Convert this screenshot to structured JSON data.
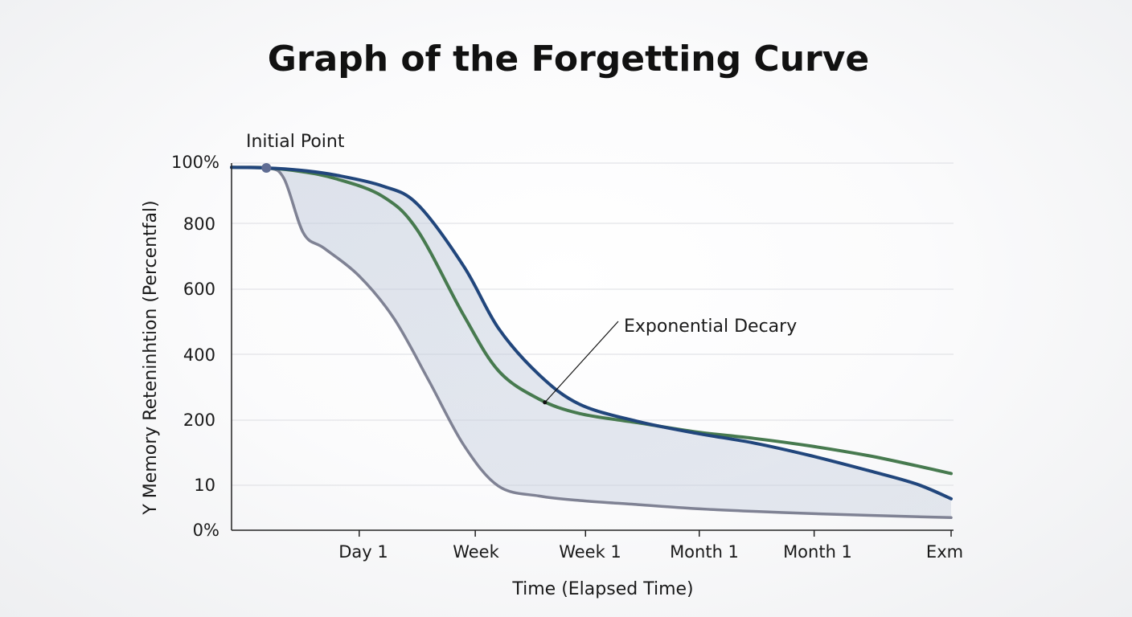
{
  "chart_data": {
    "type": "line",
    "title": "Graph of the Forgetting Curve",
    "xlabel": "Time (Elapsed Time)",
    "ylabel": "Y Memory Reteninhtion (Percentfal)",
    "y_tick_labels": [
      "0%",
      "10",
      "200",
      "400",
      "600",
      "800",
      "100%"
    ],
    "x_tick_labels": [
      "Day 1",
      "Week",
      "Week 1",
      "Month 1",
      "Month 1",
      "Exm"
    ],
    "xlim": [
      0,
      6.2
    ],
    "ylim": [
      0,
      6
    ],
    "grid": true,
    "shaded_region": "between gray and blue series",
    "series": [
      {
        "name": "blue",
        "color": "#21467c",
        "x": [
          0,
          0.3,
          0.6,
          0.9,
          1.3,
          1.6,
          2.0,
          2.3,
          2.65,
          3.0,
          3.5,
          4.0,
          4.5,
          5.0,
          5.5,
          5.9,
          6.2
        ],
        "y": [
          5.93,
          5.92,
          5.88,
          5.8,
          5.62,
          5.32,
          4.35,
          3.4,
          2.69,
          2.24,
          1.98,
          1.8,
          1.65,
          1.45,
          1.22,
          1.02,
          0.7
        ]
      },
      {
        "name": "green",
        "color": "#477a4f",
        "x": [
          0,
          0.3,
          0.6,
          0.9,
          1.3,
          1.6,
          2.0,
          2.3,
          2.65,
          3.0,
          3.5,
          4.0,
          4.5,
          5.0,
          5.5,
          5.9,
          6.2
        ],
        "y": [
          5.93,
          5.92,
          5.86,
          5.74,
          5.45,
          4.9,
          3.6,
          2.75,
          2.32,
          2.1,
          1.96,
          1.82,
          1.72,
          1.6,
          1.45,
          1.3,
          1.18
        ]
      },
      {
        "name": "gray",
        "color": "#7f8294",
        "x": [
          0,
          0.3,
          0.45,
          0.62,
          0.8,
          1.1,
          1.4,
          1.7,
          2.0,
          2.3,
          2.65,
          3.0,
          3.5,
          4.0,
          4.5,
          5.0,
          5.5,
          6.2
        ],
        "y": [
          5.93,
          5.92,
          5.75,
          4.85,
          4.62,
          4.2,
          3.55,
          2.6,
          1.62,
          0.98,
          0.76,
          0.66,
          0.57,
          0.48,
          0.42,
          0.37,
          0.33,
          0.28
        ]
      }
    ],
    "initial_point": {
      "label": "Initial Point",
      "x": 0.3,
      "y": 5.92
    },
    "annotations": [
      {
        "text": "Exponential Decary",
        "x": 2.7,
        "y": 2.27
      }
    ]
  }
}
